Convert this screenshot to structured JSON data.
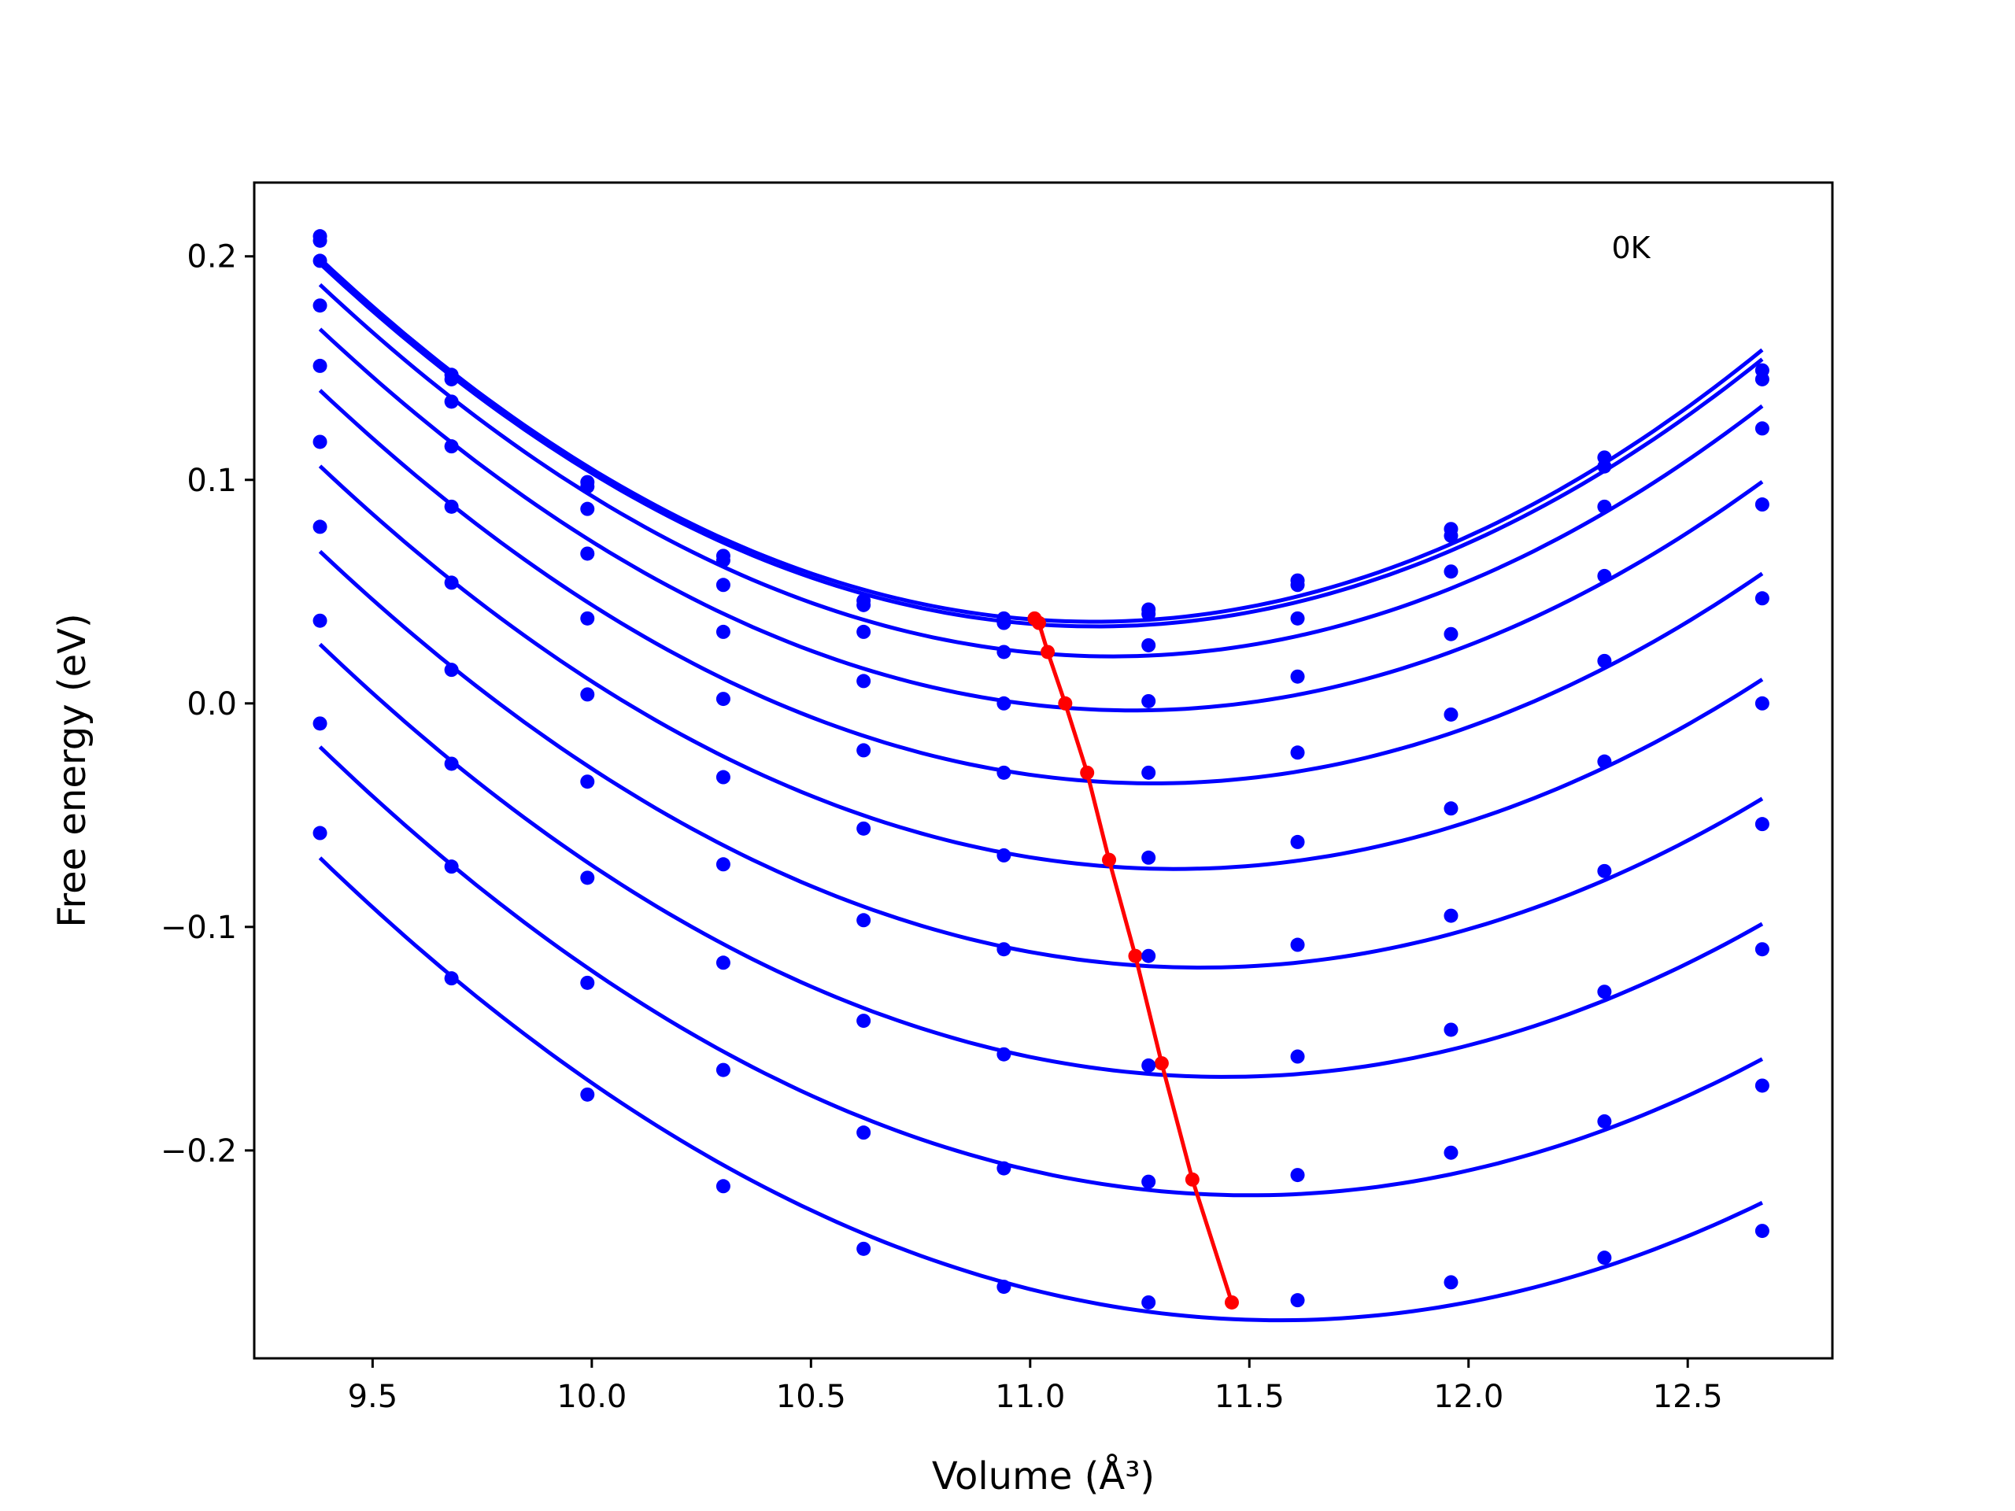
{
  "chart_data": {
    "type": "line",
    "title": "",
    "xlabel": "Volume (Å³)",
    "ylabel": "Free energy (eV)",
    "annotation": "0K",
    "xlim": [
      9.23,
      12.83
    ],
    "ylim": [
      -0.293,
      0.233
    ],
    "xticks": [
      9.5,
      10.0,
      10.5,
      11.0,
      11.5,
      12.0,
      12.5
    ],
    "xtick_labels": [
      "9.5",
      "10.0",
      "10.5",
      "11.0",
      "11.5",
      "12.0",
      "12.5"
    ],
    "yticks": [
      -0.2,
      -0.1,
      0.0,
      0.1,
      0.2
    ],
    "ytick_labels": [
      "−0.2",
      "−0.1",
      "0.0",
      "0.1",
      "0.2"
    ],
    "grid": false,
    "colors": {
      "curves": "#0000ff",
      "minima": "#ff0000",
      "frame": "#000000"
    },
    "x": [
      9.38,
      9.68,
      9.99,
      10.3,
      10.62,
      10.94,
      11.27,
      11.61,
      11.96,
      12.31,
      12.67
    ],
    "series": [
      {
        "values": [
          0.209,
          0.147,
          0.099,
          0.066,
          0.046,
          0.038,
          0.042,
          0.055,
          0.078,
          0.11,
          0.149
        ]
      },
      {
        "values": [
          0.207,
          0.145,
          0.097,
          0.064,
          0.044,
          0.036,
          0.04,
          0.053,
          0.075,
          0.106,
          0.145
        ]
      },
      {
        "values": [
          0.198,
          0.135,
          0.087,
          0.053,
          0.032,
          0.023,
          0.026,
          0.038,
          0.059,
          0.088,
          0.123
        ]
      },
      {
        "values": [
          0.178,
          0.115,
          0.067,
          0.032,
          0.01,
          0.0,
          0.001,
          0.012,
          0.031,
          0.057,
          0.089
        ]
      },
      {
        "values": [
          0.151,
          0.088,
          0.038,
          0.002,
          -0.021,
          -0.031,
          -0.031,
          -0.022,
          -0.005,
          0.019,
          0.047
        ]
      },
      {
        "values": [
          0.117,
          0.054,
          0.004,
          -0.033,
          -0.056,
          -0.068,
          -0.069,
          -0.062,
          -0.047,
          -0.026,
          0.0
        ]
      },
      {
        "values": [
          0.079,
          0.015,
          -0.035,
          -0.072,
          -0.097,
          -0.11,
          -0.113,
          -0.108,
          -0.095,
          -0.075,
          -0.054
        ]
      },
      {
        "values": [
          0.037,
          -0.027,
          -0.078,
          -0.116,
          -0.142,
          -0.157,
          -0.162,
          -0.158,
          -0.146,
          -0.129,
          -0.11
        ]
      },
      {
        "values": [
          -0.009,
          -0.073,
          -0.125,
          -0.164,
          -0.192,
          -0.208,
          -0.214,
          -0.211,
          -0.201,
          -0.187,
          -0.171
        ]
      },
      {
        "values": [
          -0.058,
          -0.123,
          -0.175,
          -0.216,
          -0.244,
          -0.261,
          -0.268,
          -0.267,
          -0.259,
          -0.248,
          -0.236
        ]
      }
    ],
    "minima": {
      "x": [
        11.01,
        11.02,
        11.04,
        11.08,
        11.13,
        11.18,
        11.24,
        11.3,
        11.37,
        11.46
      ],
      "y": [
        0.038,
        0.036,
        0.023,
        0.0,
        -0.031,
        -0.07,
        -0.113,
        -0.161,
        -0.213,
        -0.268
      ]
    }
  }
}
